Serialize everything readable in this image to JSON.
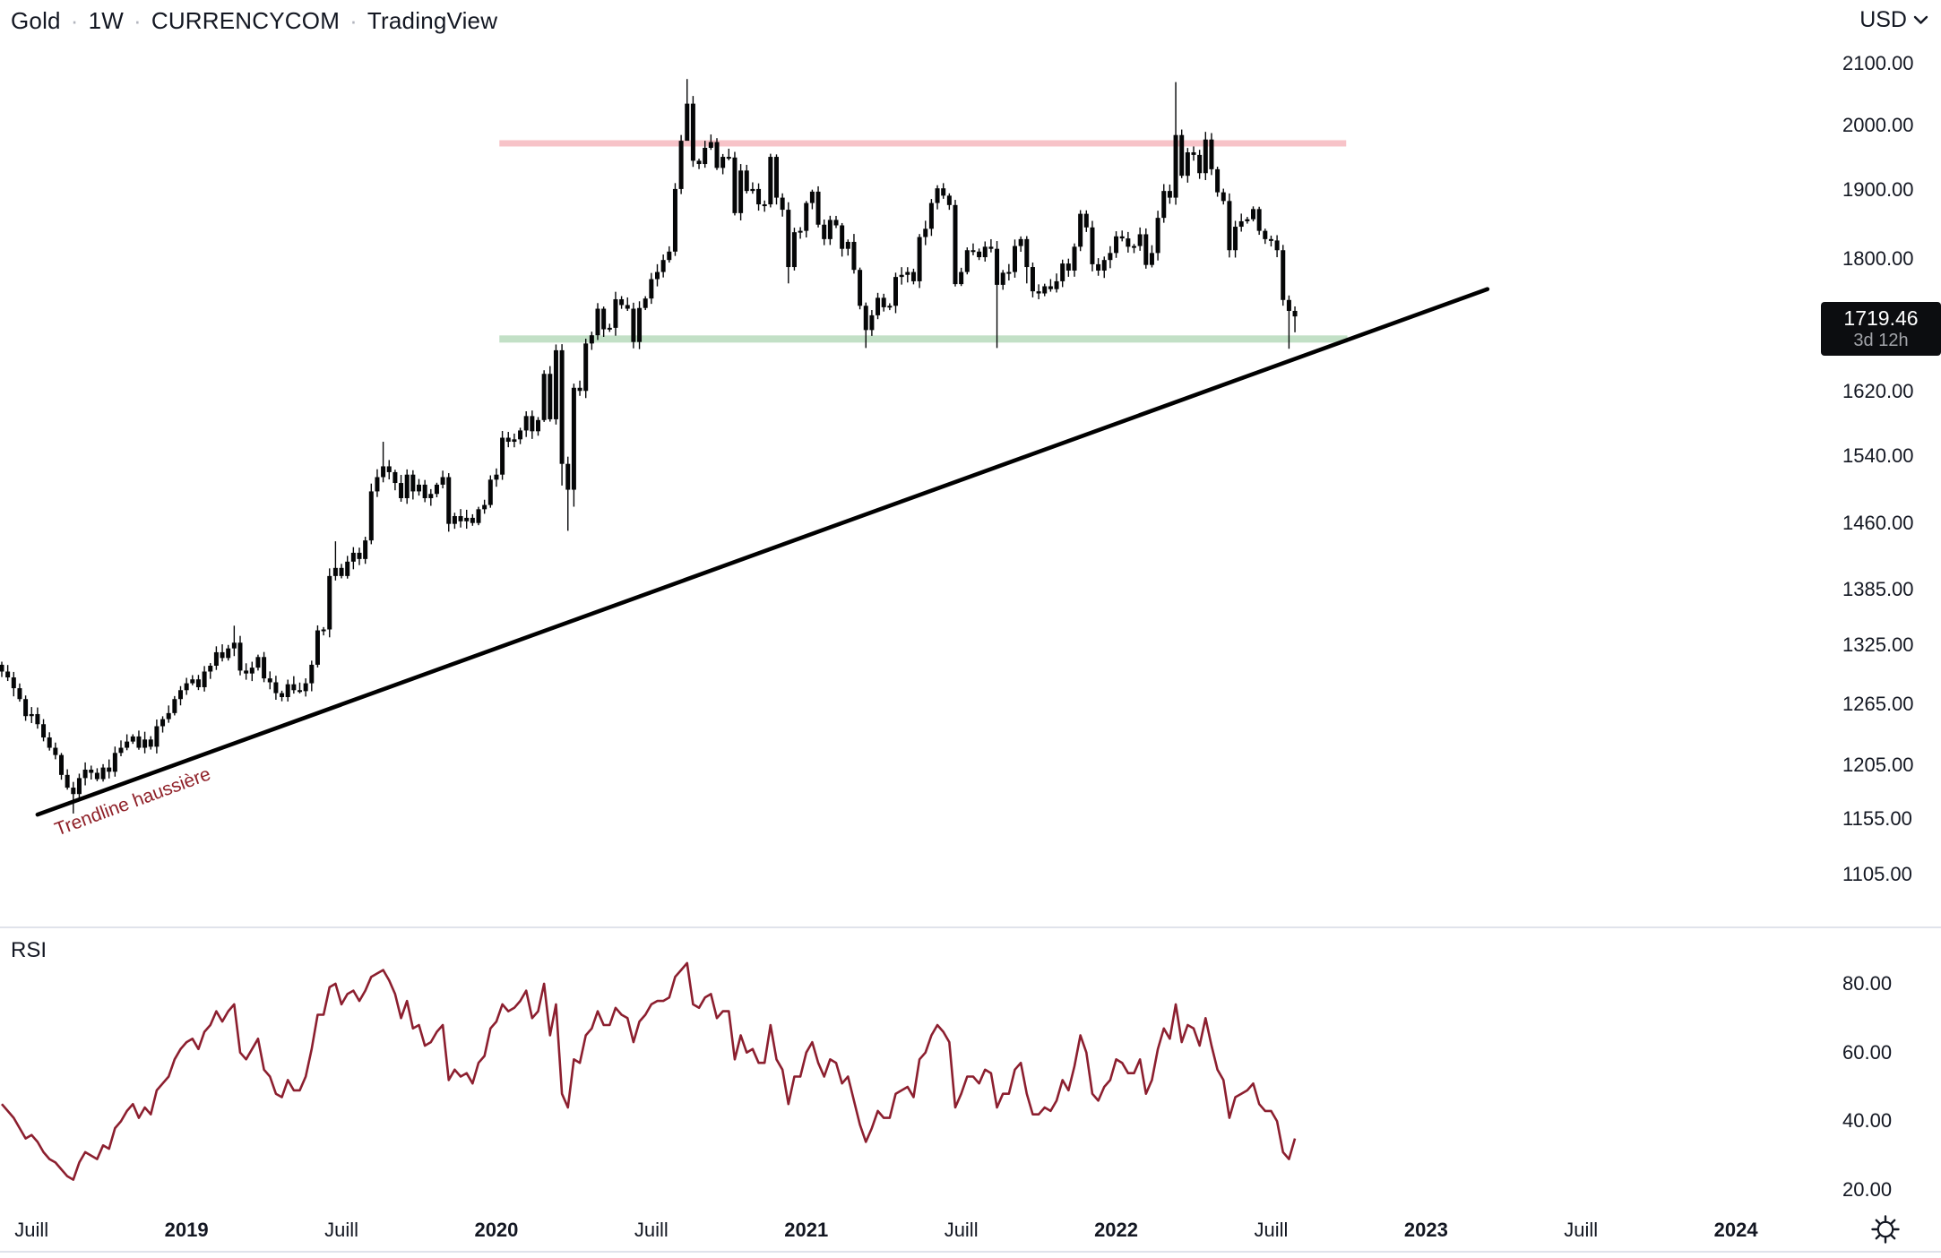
{
  "header": {
    "symbol": "Gold",
    "interval": "1W",
    "exchange": "CURRENCYCOM",
    "attribution": "TradingView",
    "separator": "·"
  },
  "currency_selector": {
    "label": "USD"
  },
  "price_badge": {
    "price": "1719.46",
    "countdown": "3d 12h"
  },
  "rsi_label": "RSI",
  "colors": {
    "background": "#ffffff",
    "text": "#131722",
    "muted_text": "#b2b5be",
    "candle": "#050607",
    "resistance_band": "#f7c3c8",
    "support_band": "#c2e0c6",
    "trendline": "#000000",
    "annotation_text": "#8f2028",
    "rsi_line": "#8c1f2f",
    "divider": "#e0e3eb",
    "badge_bg": "#0c0d10"
  },
  "chart_data": [
    {
      "type": "candlestick",
      "title": "Gold weekly (CURRENCYCOM)",
      "scale": "log",
      "ylim": [
        1060,
        2209
      ],
      "y_ticks": [
        2100,
        2000,
        1900,
        1800,
        1620,
        1540,
        1460,
        1385,
        1325,
        1265,
        1205,
        1155,
        1105
      ],
      "last_price": 1719.46,
      "first_open": 1305,
      "weekly_closes": [
        1298,
        1292,
        1281,
        1270,
        1253,
        1255,
        1245,
        1232,
        1222,
        1215,
        1196,
        1184,
        1178,
        1193,
        1201,
        1198,
        1192,
        1203,
        1199,
        1217,
        1222,
        1228,
        1233,
        1222,
        1230,
        1223,
        1243,
        1250,
        1256,
        1270,
        1279,
        1286,
        1290,
        1282,
        1298,
        1304,
        1318,
        1312,
        1322,
        1328,
        1299,
        1296,
        1302,
        1313,
        1291,
        1287,
        1276,
        1272,
        1285,
        1279,
        1278,
        1286,
        1305,
        1341,
        1342,
        1400,
        1409,
        1400,
        1416,
        1426,
        1419,
        1440,
        1497,
        1514,
        1527,
        1520,
        1507,
        1489,
        1517,
        1497,
        1505,
        1489,
        1494,
        1505,
        1514,
        1459,
        1468,
        1462,
        1466,
        1460,
        1476,
        1481,
        1511,
        1517,
        1562,
        1557,
        1560,
        1571,
        1589,
        1570,
        1584,
        1643,
        1585,
        1674,
        1530,
        1499,
        1625,
        1621,
        1683,
        1694,
        1730,
        1702,
        1704,
        1743,
        1735,
        1730,
        1685,
        1731,
        1744,
        1771,
        1781,
        1798,
        1810,
        1902,
        1976,
        2035,
        1945,
        1940,
        1965,
        1974,
        1934,
        1951,
        1950,
        1866,
        1930,
        1899,
        1902,
        1879,
        1879,
        1951,
        1889,
        1871,
        1788,
        1838,
        1840,
        1881,
        1898,
        1849,
        1828,
        1856,
        1848,
        1814,
        1824,
        1784,
        1734,
        1701,
        1721,
        1745,
        1732,
        1734,
        1774,
        1777,
        1781,
        1768,
        1831,
        1843,
        1881,
        1903,
        1892,
        1878,
        1764,
        1781,
        1812,
        1810,
        1802,
        1817,
        1814,
        1763,
        1780,
        1781,
        1818,
        1828,
        1788,
        1754,
        1751,
        1761,
        1757,
        1768,
        1793,
        1783,
        1817,
        1865,
        1845,
        1792,
        1783,
        1798,
        1808,
        1832,
        1829,
        1817,
        1818,
        1835,
        1791,
        1808,
        1859,
        1899,
        1889,
        1985,
        1922,
        1958,
        1954,
        1926,
        1978,
        1932,
        1897,
        1884,
        1812,
        1846,
        1854,
        1857,
        1872,
        1840,
        1828,
        1826,
        1812,
        1742,
        1727,
        1719.46
      ],
      "extremes": [
        {
          "close": 1178,
          "low": 1160
        },
        {
          "close": 1328,
          "high": 1346
        },
        {
          "close": 1409,
          "high": 1439
        },
        {
          "close": 1527,
          "high": 1557
        },
        {
          "close": 1530,
          "low": 1504
        },
        {
          "close": 1499,
          "low": 1451
        },
        {
          "close": 1625,
          "low": 1479
        },
        {
          "close": 2035,
          "high": 2075,
          "low": 1985
        },
        {
          "close": 1788,
          "low": 1765
        },
        {
          "close": 1701,
          "low": 1677
        },
        {
          "close": 1763,
          "low": 1677
        },
        {
          "close": 1985,
          "high": 2070
        },
        {
          "close": 1727,
          "low": 1676
        },
        {
          "close": 1719.46,
          "low": 1698
        }
      ],
      "drawings": {
        "resistance_line": {
          "price": 1972,
          "from_week": 83.5,
          "to_week": 225.6
        },
        "support_line": {
          "price": 1689,
          "from_week": 83.5,
          "to_week": 225.8
        },
        "trendline": {
          "label": "Trendline haussière",
          "from": {
            "week": 6,
            "price": 1159
          },
          "to": {
            "week": 249.3,
            "price": 1757
          }
        }
      },
      "x_axis": {
        "labels": [
          {
            "text": "Juill",
            "week": 5,
            "bold": false
          },
          {
            "text": "2019",
            "week": 31,
            "bold": true
          },
          {
            "text": "Juill",
            "week": 57,
            "bold": false
          },
          {
            "text": "2020",
            "week": 83,
            "bold": true
          },
          {
            "text": "Juill",
            "week": 109,
            "bold": false
          },
          {
            "text": "2021",
            "week": 135,
            "bold": true
          },
          {
            "text": "Juill",
            "week": 161,
            "bold": false
          },
          {
            "text": "2022",
            "week": 187,
            "bold": true
          },
          {
            "text": "Juill",
            "week": 213,
            "bold": false
          },
          {
            "text": "2023",
            "week": 239,
            "bold": true
          },
          {
            "text": "Juill",
            "week": 265,
            "bold": false
          },
          {
            "text": "2024",
            "week": 291,
            "bold": true
          }
        ]
      }
    },
    {
      "type": "line",
      "name": "RSI",
      "ylim": [
        14.3,
        96.4
      ],
      "y_ticks": [
        80,
        60,
        40,
        20
      ],
      "values": [
        45,
        43,
        41,
        38,
        35,
        36,
        34,
        31,
        29,
        28,
        26,
        24,
        23,
        28,
        31,
        30,
        29,
        33,
        32,
        38,
        40,
        43,
        45,
        41,
        44,
        42,
        49,
        51,
        53,
        58,
        61,
        63,
        64,
        61,
        66,
        68,
        72,
        69,
        72,
        74,
        60,
        58,
        61,
        64,
        55,
        53,
        48,
        47,
        52,
        49,
        49,
        53,
        61,
        71,
        71,
        79,
        80,
        74,
        77,
        78,
        75,
        78,
        82,
        83,
        84,
        81,
        77,
        70,
        75,
        67,
        68,
        62,
        63,
        66,
        68,
        52,
        55,
        53,
        54,
        51,
        57,
        59,
        67,
        69,
        74,
        72,
        73,
        75,
        78,
        70,
        72,
        80,
        65,
        74,
        48,
        44,
        58,
        57,
        65,
        67,
        72,
        68,
        68,
        73,
        71,
        70,
        63,
        69,
        71,
        74,
        75,
        75,
        76,
        82,
        84,
        86,
        74,
        73,
        76,
        77,
        70,
        72,
        72,
        58,
        65,
        60,
        61,
        57,
        57,
        68,
        58,
        55,
        45,
        53,
        53,
        60,
        63,
        57,
        53,
        58,
        57,
        51,
        53,
        46,
        39,
        34,
        38,
        43,
        41,
        41,
        48,
        49,
        50,
        47,
        58,
        60,
        65,
        68,
        66,
        63,
        44,
        48,
        53,
        53,
        51,
        55,
        54,
        44,
        48,
        48,
        55,
        57,
        48,
        42,
        42,
        44,
        43,
        46,
        52,
        49,
        56,
        65,
        60,
        48,
        46,
        50,
        52,
        58,
        57,
        54,
        54,
        58,
        48,
        52,
        61,
        67,
        64,
        74,
        63,
        68,
        67,
        62,
        70,
        62,
        55,
        52,
        41,
        47,
        48,
        49,
        51,
        45,
        43,
        43,
        40,
        31,
        29,
        35
      ]
    }
  ]
}
